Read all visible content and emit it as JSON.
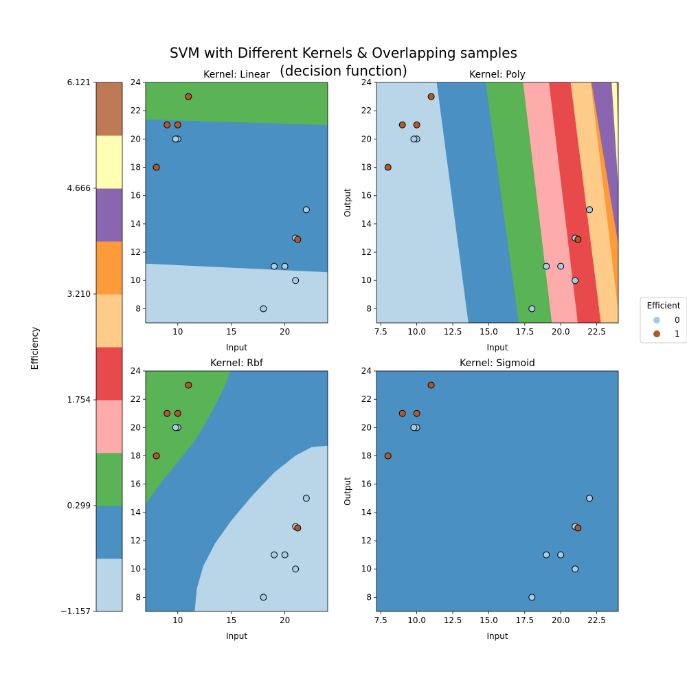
{
  "figure": {
    "title_line1": "SVM with Different Kernels & Overlapping samples",
    "title_line2": "(decision function)"
  },
  "colorbar": {
    "label": "Efficiency",
    "range": [
      -1.157,
      6.121
    ],
    "ticks": [
      "6.121",
      "4.666",
      "3.210",
      "1.754",
      "0.299",
      "−1.157"
    ],
    "tick_values": [
      6.121,
      4.666,
      3.21,
      1.754,
      0.299,
      -1.157
    ],
    "colors": [
      "#b8d6e8",
      "#4a90c3",
      "#5ab355",
      "#fdacab",
      "#e84a4c",
      "#fecb89",
      "#fd9a3a",
      "#8b66b0",
      "#ffffb3",
      "#bd7a54"
    ]
  },
  "legend": {
    "title": "Efficient",
    "items": [
      {
        "label": "0",
        "color": "#a6cee3"
      },
      {
        "label": "1",
        "color": "#b15928"
      }
    ]
  },
  "chart_data": [
    {
      "type": "scatter",
      "title": "Kernel: Linear",
      "xlabel": "Input",
      "ylabel": "",
      "xlim": [
        7,
        24
      ],
      "ylim": [
        7,
        24
      ],
      "xticks": [
        "10",
        "15",
        "20"
      ],
      "xtick_values": [
        10,
        15,
        20
      ],
      "yticks": [
        "8",
        "10",
        "12",
        "14",
        "16",
        "18",
        "20",
        "22",
        "24"
      ],
      "ytick_values": [
        8,
        10,
        12,
        14,
        16,
        18,
        20,
        22,
        24
      ],
      "regions": [
        {
          "color": "#b8d6e8",
          "polygon": [
            [
              7,
              7
            ],
            [
              24,
              7
            ],
            [
              24,
              10.6
            ],
            [
              7,
              11.2
            ]
          ]
        },
        {
          "color": "#4a90c3",
          "polygon": [
            [
              7,
              11.2
            ],
            [
              24,
              10.6
            ],
            [
              24,
              21.0
            ],
            [
              7,
              21.4
            ]
          ]
        },
        {
          "color": "#5ab355",
          "polygon": [
            [
              7,
              21.4
            ],
            [
              24,
              21.0
            ],
            [
              24,
              24
            ],
            [
              7,
              24
            ]
          ]
        }
      ]
    },
    {
      "type": "scatter",
      "title": "Kernel: Poly",
      "xlabel": "Input",
      "ylabel": "Output",
      "xlim": [
        7.2,
        24
      ],
      "ylim": [
        7,
        24
      ],
      "xticks": [
        "7.5",
        "10.0",
        "12.5",
        "15.0",
        "17.5",
        "20.0",
        "22.5"
      ],
      "xtick_values": [
        7.5,
        10,
        12.5,
        15,
        17.5,
        20,
        22.5
      ],
      "yticks": [
        "8",
        "10",
        "12",
        "14",
        "16",
        "18",
        "20",
        "22",
        "24"
      ],
      "ytick_values": [
        8,
        10,
        12,
        14,
        16,
        18,
        20,
        22,
        24
      ],
      "regions": [
        {
          "color": "#b8d6e8",
          "polygon": [
            [
              7.2,
              7
            ],
            [
              13.6,
              7
            ],
            [
              11.4,
              24
            ],
            [
              7.2,
              24
            ]
          ]
        },
        {
          "color": "#4a90c3",
          "polygon": [
            [
              13.6,
              7
            ],
            [
              17.1,
              7
            ],
            [
              14.8,
              24
            ],
            [
              11.4,
              24
            ]
          ]
        },
        {
          "color": "#5ab355",
          "polygon": [
            [
              17.1,
              7
            ],
            [
              19.4,
              7
            ],
            [
              17.4,
              24
            ],
            [
              14.8,
              24
            ]
          ]
        },
        {
          "color": "#fdacab",
          "polygon": [
            [
              19.4,
              7
            ],
            [
              21.2,
              7
            ],
            [
              19.2,
              24
            ],
            [
              17.4,
              24
            ]
          ]
        },
        {
          "color": "#e84a4c",
          "polygon": [
            [
              21.2,
              7
            ],
            [
              22.8,
              7
            ],
            [
              20.7,
              24
            ],
            [
              19.2,
              24
            ]
          ]
        },
        {
          "color": "#fecb89",
          "polygon": [
            [
              22.8,
              7
            ],
            [
              24,
              7
            ],
            [
              24,
              7.9
            ],
            [
              22.1,
              24
            ],
            [
              20.7,
              24
            ]
          ]
        },
        {
          "color": "#fd9a3a",
          "polygon": [
            [
              24,
              7.9
            ],
            [
              24,
              12.6
            ],
            [
              23.4,
              24
            ],
            [
              22.1,
              24
            ]
          ]
        },
        {
          "color": "#8b66b0",
          "polygon": [
            [
              24,
              12.6
            ],
            [
              24,
              16.6
            ],
            [
              24,
              17.5
            ],
            [
              23.5,
              24
            ],
            [
              23.4,
              24
            ]
          ]
        },
        {
          "color": "#8b66b0",
          "polygon": [
            [
              24,
              12.6
            ],
            [
              24,
              16.8
            ],
            [
              23.55,
              24
            ],
            [
              22.15,
              24
            ]
          ]
        },
        {
          "color": "#ffffb3",
          "polygon": [
            [
              24,
              16.8
            ],
            [
              24,
              20.2
            ],
            [
              24,
              24
            ],
            [
              23.55,
              24
            ]
          ]
        },
        {
          "color": "#bd7a54",
          "polygon": [
            [
              24,
              20.2
            ],
            [
              24,
              24
            ],
            [
              23.9,
              24
            ]
          ]
        }
      ]
    },
    {
      "type": "scatter",
      "title": "Kernel: Rbf",
      "xlabel": "Input",
      "ylabel": "",
      "xlim": [
        7,
        24
      ],
      "ylim": [
        7,
        24
      ],
      "xticks": [
        "10",
        "15",
        "20"
      ],
      "xtick_values": [
        10,
        15,
        20
      ],
      "yticks": [
        "8",
        "10",
        "12",
        "14",
        "16",
        "18",
        "20",
        "22",
        "24"
      ],
      "ytick_values": [
        8,
        10,
        12,
        14,
        16,
        18,
        20,
        22,
        24
      ],
      "regions": [
        {
          "color": "#4a90c3",
          "polygon": [
            [
              7,
              7
            ],
            [
              24,
              7
            ],
            [
              24,
              24
            ],
            [
              7,
              24
            ]
          ]
        },
        {
          "color": "#5ab355",
          "polygon": [
            [
              7,
              14.6
            ],
            [
              8.5,
              16.2
            ],
            [
              10,
              17.6
            ],
            [
              11.5,
              19.0
            ],
            [
              12.5,
              20.2
            ],
            [
              13.5,
              21.6
            ],
            [
              14.4,
              23.0
            ],
            [
              14.9,
              24
            ],
            [
              7,
              24
            ]
          ]
        },
        {
          "color": "#b8d6e8",
          "polygon": [
            [
              11.6,
              7
            ],
            [
              11.8,
              8.6
            ],
            [
              12.4,
              10.2
            ],
            [
              13.5,
              11.8
            ],
            [
              15.0,
              13.4
            ],
            [
              17.0,
              15.2
            ],
            [
              19.0,
              16.8
            ],
            [
              21.0,
              18.0
            ],
            [
              22.5,
              18.6
            ],
            [
              24,
              18.7
            ],
            [
              24,
              7
            ]
          ]
        }
      ]
    },
    {
      "type": "scatter",
      "title": "Kernel: Sigmoid",
      "xlabel": "Input",
      "ylabel": "Output",
      "xlim": [
        7.2,
        24
      ],
      "ylim": [
        7,
        24
      ],
      "xticks": [
        "7.5",
        "10.0",
        "12.5",
        "15.0",
        "17.5",
        "20.0",
        "22.5"
      ],
      "xtick_values": [
        7.5,
        10,
        12.5,
        15,
        17.5,
        20,
        22.5
      ],
      "yticks": [
        "8",
        "10",
        "12",
        "14",
        "16",
        "18",
        "20",
        "22",
        "24"
      ],
      "ytick_values": [
        8,
        10,
        12,
        14,
        16,
        18,
        20,
        22,
        24
      ],
      "regions": [
        {
          "color": "#4a90c3",
          "polygon": [
            [
              7.2,
              7
            ],
            [
              24,
              7
            ],
            [
              24,
              24
            ],
            [
              7.2,
              24
            ]
          ]
        }
      ]
    }
  ],
  "points": [
    {
      "x": 8,
      "y": 18,
      "cls": 1
    },
    {
      "x": 9,
      "y": 21,
      "cls": 1
    },
    {
      "x": 10,
      "y": 21,
      "cls": 1
    },
    {
      "x": 11,
      "y": 23,
      "cls": 1
    },
    {
      "x": 10,
      "y": 20,
      "cls": 0
    },
    {
      "x": 9.8,
      "y": 20,
      "cls": 0
    },
    {
      "x": 18,
      "y": 8,
      "cls": 0
    },
    {
      "x": 19,
      "y": 11,
      "cls": 0
    },
    {
      "x": 20,
      "y": 11,
      "cls": 0
    },
    {
      "x": 21,
      "y": 10,
      "cls": 0
    },
    {
      "x": 21,
      "y": 13,
      "cls": 0
    },
    {
      "x": 21.2,
      "y": 12.9,
      "cls": 1
    },
    {
      "x": 22,
      "y": 15,
      "cls": 0
    }
  ]
}
